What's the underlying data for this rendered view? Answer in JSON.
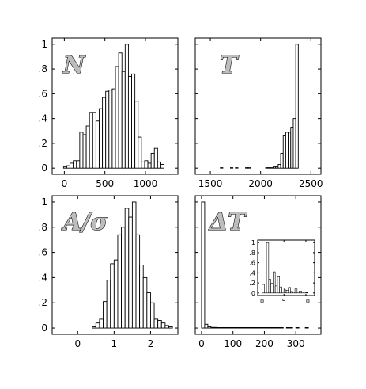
{
  "chart_data": [
    {
      "type": "bar",
      "panel_label": "N",
      "xlim": [
        -150,
        1400
      ],
      "ylim": [
        -0.05,
        1.05
      ],
      "xticks": [
        0,
        500,
        1000
      ],
      "yticks": [
        0,
        0.2,
        0.4,
        0.6,
        0.8,
        1
      ],
      "ytick_labels": [
        "0",
        ".2",
        ".4",
        ".6",
        ".8",
        "1"
      ],
      "bin_width": 40,
      "bins": [
        {
          "x": 10,
          "y": 0.01
        },
        {
          "x": 50,
          "y": 0.02
        },
        {
          "x": 90,
          "y": 0.04
        },
        {
          "x": 130,
          "y": 0.06
        },
        {
          "x": 170,
          "y": 0.06
        },
        {
          "x": 210,
          "y": 0.29
        },
        {
          "x": 250,
          "y": 0.27
        },
        {
          "x": 290,
          "y": 0.34
        },
        {
          "x": 330,
          "y": 0.45
        },
        {
          "x": 370,
          "y": 0.45
        },
        {
          "x": 410,
          "y": 0.38
        },
        {
          "x": 450,
          "y": 0.48
        },
        {
          "x": 490,
          "y": 0.57
        },
        {
          "x": 530,
          "y": 0.62
        },
        {
          "x": 570,
          "y": 0.63
        },
        {
          "x": 610,
          "y": 0.64
        },
        {
          "x": 650,
          "y": 0.82
        },
        {
          "x": 690,
          "y": 0.93
        },
        {
          "x": 730,
          "y": 0.78
        },
        {
          "x": 770,
          "y": 1.0
        },
        {
          "x": 810,
          "y": 0.74
        },
        {
          "x": 850,
          "y": 0.76
        },
        {
          "x": 890,
          "y": 0.54
        },
        {
          "x": 930,
          "y": 0.25
        },
        {
          "x": 970,
          "y": 0.05
        },
        {
          "x": 1010,
          "y": 0.06
        },
        {
          "x": 1050,
          "y": 0.04
        },
        {
          "x": 1090,
          "y": 0.12
        },
        {
          "x": 1130,
          "y": 0.16
        },
        {
          "x": 1170,
          "y": 0.05
        },
        {
          "x": 1210,
          "y": 0.03
        }
      ]
    },
    {
      "type": "bar",
      "panel_label": "T",
      "xlim": [
        1350,
        2600
      ],
      "ylim": [
        -0.05,
        1.05
      ],
      "xticks": [
        1500,
        2000,
        2500
      ],
      "yticks": [
        0,
        0.2,
        0.4,
        0.6,
        0.8,
        1
      ],
      "ytick_labels": [
        "",
        "",
        "",
        "",
        "",
        ""
      ],
      "bin_width": 25,
      "bins": [
        {
          "x": 1612,
          "y": 0
        },
        {
          "x": 1712,
          "y": 0
        },
        {
          "x": 1762,
          "y": 0
        },
        {
          "x": 1862,
          "y": 0
        },
        {
          "x": 1887,
          "y": 0
        },
        {
          "x": 2062,
          "y": 0
        },
        {
          "x": 2087,
          "y": 0
        },
        {
          "x": 2112,
          "y": 0
        },
        {
          "x": 2137,
          "y": 0.01
        },
        {
          "x": 2162,
          "y": 0.01
        },
        {
          "x": 2187,
          "y": 0.03
        },
        {
          "x": 2212,
          "y": 0.12
        },
        {
          "x": 2237,
          "y": 0.26
        },
        {
          "x": 2262,
          "y": 0.29
        },
        {
          "x": 2287,
          "y": 0.29
        },
        {
          "x": 2312,
          "y": 0.33
        },
        {
          "x": 2337,
          "y": 0.4
        },
        {
          "x": 2362,
          "y": 1.0
        }
      ]
    },
    {
      "type": "bar",
      "panel_label": "A/σ",
      "xlim": [
        -0.7,
        2.75
      ],
      "ylim": [
        -0.05,
        1.05
      ],
      "xticks": [
        0,
        1,
        2
      ],
      "yticks": [
        0,
        0.2,
        0.4,
        0.6,
        0.8,
        1
      ],
      "ytick_labels": [
        "0",
        ".2",
        ".4",
        ".6",
        ".8",
        "1"
      ],
      "bin_width": 0.1,
      "bins": [
        {
          "x": 0.45,
          "y": 0.01
        },
        {
          "x": 0.55,
          "y": 0.04
        },
        {
          "x": 0.65,
          "y": 0.07
        },
        {
          "x": 0.75,
          "y": 0.21
        },
        {
          "x": 0.85,
          "y": 0.38
        },
        {
          "x": 0.95,
          "y": 0.51
        },
        {
          "x": 1.05,
          "y": 0.54
        },
        {
          "x": 1.15,
          "y": 0.74
        },
        {
          "x": 1.25,
          "y": 0.8
        },
        {
          "x": 1.35,
          "y": 0.95
        },
        {
          "x": 1.45,
          "y": 0.88
        },
        {
          "x": 1.55,
          "y": 1.0
        },
        {
          "x": 1.65,
          "y": 0.74
        },
        {
          "x": 1.75,
          "y": 0.5
        },
        {
          "x": 1.85,
          "y": 0.4
        },
        {
          "x": 1.95,
          "y": 0.28
        },
        {
          "x": 2.05,
          "y": 0.2
        },
        {
          "x": 2.15,
          "y": 0.07
        },
        {
          "x": 2.25,
          "y": 0.06
        },
        {
          "x": 2.35,
          "y": 0.04
        },
        {
          "x": 2.45,
          "y": 0.02
        },
        {
          "x": 2.55,
          "y": 0.01
        }
      ]
    },
    {
      "type": "bar",
      "panel_label": "ΔT",
      "xlim": [
        -20,
        380
      ],
      "ylim": [
        -0.05,
        1.05
      ],
      "xticks": [
        0,
        100,
        200,
        300
      ],
      "yticks": [
        0,
        0.2,
        0.4,
        0.6,
        0.8,
        1
      ],
      "ytick_labels": [
        "",
        "",
        "",
        "",
        "",
        ""
      ],
      "bin_width": 10,
      "bins": [
        {
          "x": 5,
          "y": 1.0
        },
        {
          "x": 15,
          "y": 0.03
        },
        {
          "x": 25,
          "y": 0.01
        },
        {
          "x": 35,
          "y": 0.005
        },
        {
          "x": 45,
          "y": 0.005
        },
        {
          "x": 55,
          "y": 0
        },
        {
          "x": 65,
          "y": 0
        },
        {
          "x": 75,
          "y": 0
        },
        {
          "x": 85,
          "y": 0
        },
        {
          "x": 95,
          "y": 0
        },
        {
          "x": 105,
          "y": 0
        },
        {
          "x": 115,
          "y": 0
        },
        {
          "x": 125,
          "y": 0
        },
        {
          "x": 135,
          "y": 0
        },
        {
          "x": 145,
          "y": 0
        },
        {
          "x": 155,
          "y": 0
        },
        {
          "x": 165,
          "y": 0
        },
        {
          "x": 175,
          "y": 0
        },
        {
          "x": 185,
          "y": 0
        },
        {
          "x": 195,
          "y": 0
        },
        {
          "x": 205,
          "y": 0
        },
        {
          "x": 215,
          "y": 0
        },
        {
          "x": 225,
          "y": 0
        },
        {
          "x": 235,
          "y": 0
        },
        {
          "x": 245,
          "y": 0
        },
        {
          "x": 255,
          "y": 0
        },
        {
          "x": 275,
          "y": 0
        },
        {
          "x": 285,
          "y": 0
        },
        {
          "x": 305,
          "y": 0
        },
        {
          "x": 335,
          "y": 0
        }
      ],
      "inset": {
        "type": "bar",
        "xlim": [
          -1,
          12
        ],
        "ylim": [
          -0.05,
          1.05
        ],
        "xticks": [
          0,
          5,
          10
        ],
        "yticks": [
          0,
          0.2,
          0.4,
          0.6,
          0.8,
          1
        ],
        "ytick_labels": [
          "0",
          ".2",
          ".4",
          ".6",
          ".8",
          "1"
        ],
        "bin_width": 0.5,
        "bins": [
          {
            "x": 0.25,
            "y": 0.17
          },
          {
            "x": 0.75,
            "y": 0.1
          },
          {
            "x": 1.25,
            "y": 1.0
          },
          {
            "x": 1.75,
            "y": 0.27
          },
          {
            "x": 2.25,
            "y": 0.19
          },
          {
            "x": 2.75,
            "y": 0.42
          },
          {
            "x": 3.25,
            "y": 0.14
          },
          {
            "x": 3.75,
            "y": 0.32
          },
          {
            "x": 4.25,
            "y": 0.12
          },
          {
            "x": 4.75,
            "y": 0.1
          },
          {
            "x": 5.25,
            "y": 0.06
          },
          {
            "x": 5.75,
            "y": 0.05
          },
          {
            "x": 6.25,
            "y": 0.11
          },
          {
            "x": 6.75,
            "y": 0.03
          },
          {
            "x": 7.25,
            "y": 0.02
          },
          {
            "x": 7.75,
            "y": 0.08
          },
          {
            "x": 8.25,
            "y": 0.02
          },
          {
            "x": 8.75,
            "y": 0.04
          },
          {
            "x": 9.25,
            "y": 0.02
          },
          {
            "x": 9.75,
            "y": 0.02
          },
          {
            "x": 10.25,
            "y": 0.01
          }
        ]
      }
    }
  ]
}
